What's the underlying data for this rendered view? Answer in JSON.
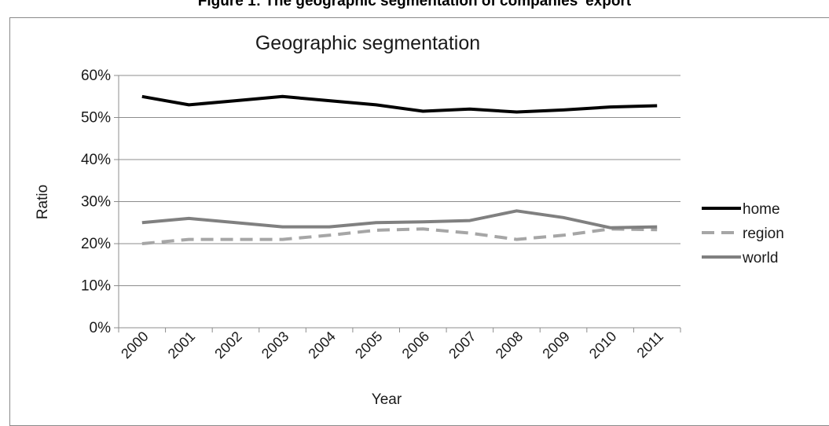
{
  "caption": "Figure 1: The geographic segmentation of companies' export",
  "chart_data": {
    "type": "line",
    "title": "Geographic segmentation",
    "xlabel": "Year",
    "ylabel": "Ratio",
    "categories": [
      "2000",
      "2001",
      "2002",
      "2003",
      "2004",
      "2005",
      "2006",
      "2007",
      "2008",
      "2009",
      "2010",
      "2011"
    ],
    "ylim": [
      0,
      60
    ],
    "yticks": [
      0,
      10,
      20,
      30,
      40,
      50,
      60
    ],
    "ytick_labels": [
      "0%",
      "10%",
      "20%",
      "30%",
      "40%",
      "50%",
      "60%"
    ],
    "grid": true,
    "legend_position": "right",
    "series": [
      {
        "name": "home",
        "color": "#000000",
        "dash": "solid",
        "values": [
          55.0,
          53.0,
          54.0,
          55.0,
          54.0,
          53.0,
          51.5,
          52.0,
          51.3,
          51.8,
          52.5,
          52.8
        ]
      },
      {
        "name": "region",
        "color": "#a6a6a6",
        "dash": "dashed",
        "values": [
          20.0,
          21.0,
          21.0,
          21.0,
          22.0,
          23.2,
          23.5,
          22.5,
          21.0,
          22.0,
          23.5,
          23.3
        ]
      },
      {
        "name": "world",
        "color": "#808080",
        "dash": "solid",
        "values": [
          25.0,
          26.0,
          25.0,
          24.0,
          24.0,
          25.0,
          25.2,
          25.5,
          27.8,
          26.2,
          23.8,
          24.0
        ]
      }
    ]
  }
}
